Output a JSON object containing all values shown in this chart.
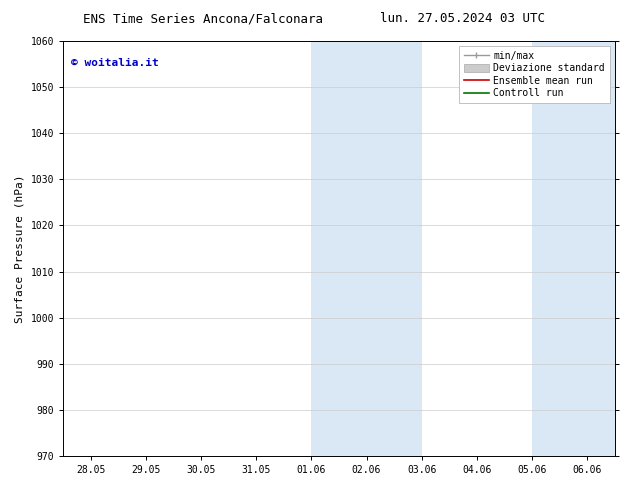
{
  "title_left": "ENS Time Series Ancona/Falconara",
  "title_right": "lun. 27.05.2024 03 UTC",
  "ylabel": "Surface Pressure (hPa)",
  "ylim": [
    970,
    1060
  ],
  "yticks": [
    970,
    980,
    990,
    1000,
    1010,
    1020,
    1030,
    1040,
    1050,
    1060
  ],
  "xtick_labels": [
    "28.05",
    "29.05",
    "30.05",
    "31.05",
    "01.06",
    "02.06",
    "03.06",
    "04.06",
    "05.06",
    "06.06"
  ],
  "xtick_positions": [
    0,
    1,
    2,
    3,
    4,
    5,
    6,
    7,
    8,
    9
  ],
  "xlim": [
    -0.5,
    9.5
  ],
  "shaded_bands": [
    {
      "x_start": 4,
      "x_end": 6,
      "color": "#dae8f5"
    },
    {
      "x_start": 8,
      "x_end": 9.5,
      "color": "#dae8f5"
    }
  ],
  "copyright_text": "© woitalia.it",
  "copyright_color": "#0000cc",
  "bg_color": "#ffffff",
  "plot_bg_color": "#ffffff",
  "grid_color": "#cccccc",
  "title_fontsize": 9,
  "tick_fontsize": 7,
  "ylabel_fontsize": 8,
  "legend_fontsize": 7,
  "copyright_fontsize": 8
}
